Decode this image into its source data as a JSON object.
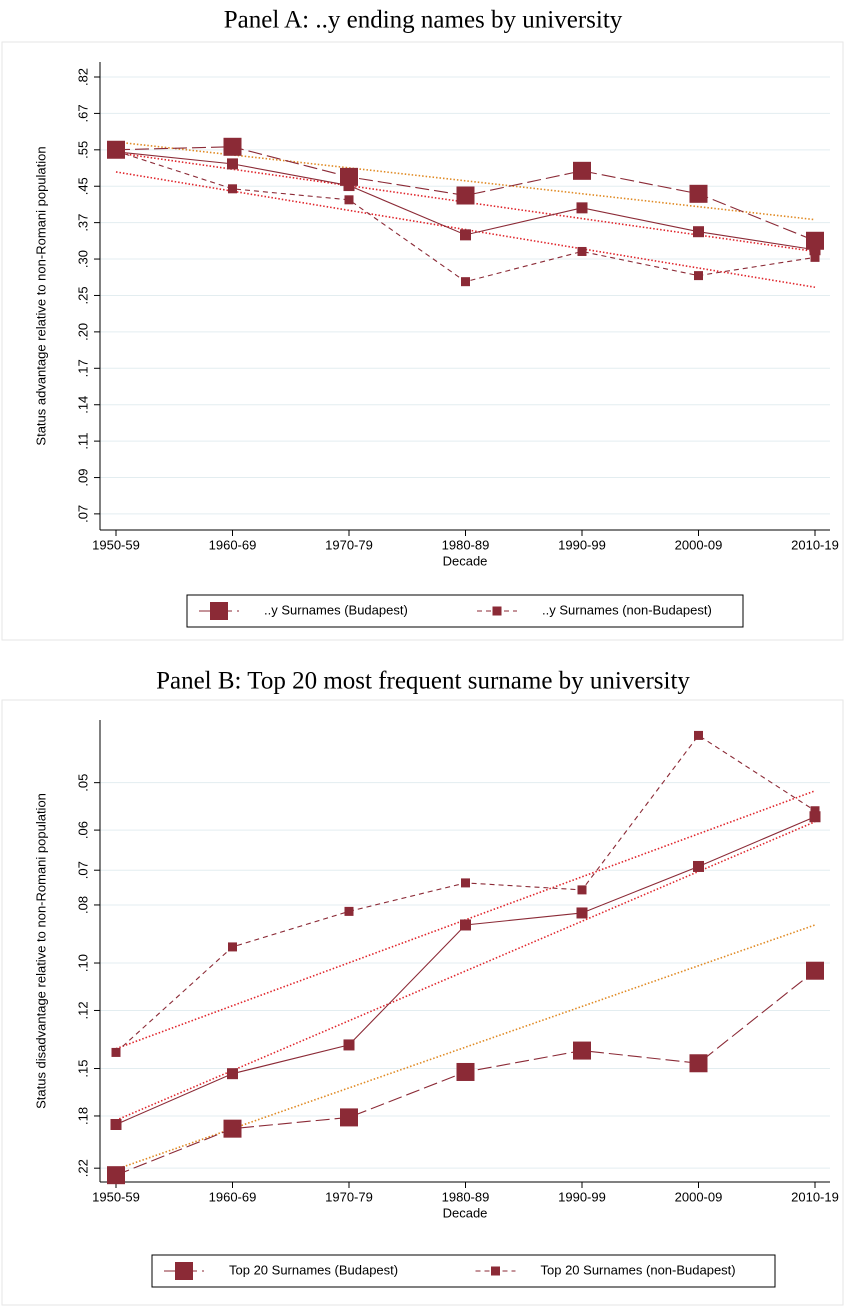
{
  "chart_data": [
    {
      "type": "line",
      "title": "Panel A: ..y ending names by university",
      "x_label": "Decade",
      "y_label": "Status advantage relative to non-Romani population",
      "categories": [
        "1950-59",
        "1960-69",
        "1970-79",
        "1980-89",
        "1990-99",
        "2000-09",
        "2010-19"
      ],
      "log_scale": true,
      "reversed": false,
      "grid": true,
      "ylim": [
        0.068,
        0.889
      ],
      "yticks": [
        {
          "value": 0.0743,
          "label": ".07"
        },
        {
          "value": 0.0907,
          "label": ".09"
        },
        {
          "value": 0.1108,
          "label": ".11"
        },
        {
          "value": 0.1353,
          "label": ".14"
        },
        {
          "value": 0.1653,
          "label": ".17"
        },
        {
          "value": 0.2019,
          "label": ".20"
        },
        {
          "value": 0.2466,
          "label": ".25"
        },
        {
          "value": 0.3012,
          "label": ".30"
        },
        {
          "value": 0.3679,
          "label": ".37"
        },
        {
          "value": 0.4493,
          "label": ".45"
        },
        {
          "value": 0.5488,
          "label": ".55"
        },
        {
          "value": 0.6703,
          "label": ".67"
        },
        {
          "value": 0.8187,
          "label": ".82"
        }
      ],
      "series": [
        {
          "name": "..y Surnames (Budapest)",
          "color": "#8b2a36",
          "line_style": "long-dash",
          "marker": "large",
          "values": [
            0.549,
            0.558,
            0.473,
            0.427,
            0.489,
            0.431,
            0.333
          ]
        },
        {
          "name": "..y Surnames (non-Budapest)",
          "color": "#8b2a36",
          "line_style": "short-dash",
          "marker": "small",
          "values": [
            0.545,
            0.443,
            0.417,
            0.266,
            0.314,
            0.275,
            0.304
          ]
        },
        {
          "color": "#8b2a36",
          "line_style": "solid",
          "marker": "medium",
          "values": [
            0.543,
            0.508,
            0.451,
            0.344,
            0.399,
            0.35,
            0.317
          ]
        }
      ],
      "fit_lines": [
        {
          "color": "#e08a24",
          "values": [
            0.573,
            0.374
          ]
        },
        {
          "color": "#e0262c",
          "values": [
            0.54,
            0.314
          ]
        },
        {
          "color": "#e0262c",
          "values": [
            0.486,
            0.258
          ]
        }
      ]
    },
    {
      "type": "line",
      "title": "Panel B: Top 20 most frequent surname by university",
      "x_label": "Decade",
      "y_label": "Status disadvantage relative to non-Romani population",
      "categories": [
        "1950-59",
        "1960-69",
        "1970-79",
        "1980-89",
        "1990-99",
        "2000-09",
        "2010-19"
      ],
      "log_scale": true,
      "reversed": true,
      "grid": true,
      "ylim": [
        0.0393,
        0.232
      ],
      "yticks": [
        {
          "value": 0.05,
          "label": ".05"
        },
        {
          "value": 0.06,
          "label": ".06"
        },
        {
          "value": 0.07,
          "label": ".07"
        },
        {
          "value": 0.08,
          "label": ".08"
        },
        {
          "value": 0.1,
          "label": ".10"
        },
        {
          "value": 0.12,
          "label": ".12"
        },
        {
          "value": 0.15,
          "label": ".15"
        },
        {
          "value": 0.18,
          "label": ".18"
        },
        {
          "value": 0.22,
          "label": ".22"
        }
      ],
      "series": [
        {
          "name": "Top 20 Surnames (Budapest)",
          "color": "#8b2a36",
          "line_style": "long-dash",
          "marker": "large",
          "values": [
            0.226,
            0.189,
            0.181,
            0.152,
            0.14,
            0.147,
            0.103
          ]
        },
        {
          "name": "Top 20 Surnames (non-Budapest)",
          "color": "#8b2a36",
          "line_style": "short-dash",
          "marker": "small",
          "values": [
            0.141,
            0.094,
            0.082,
            0.0735,
            0.0755,
            0.0417,
            0.0557
          ]
        },
        {
          "color": "#8b2a36",
          "line_style": "solid",
          "marker": "medium",
          "values": [
            0.186,
            0.153,
            0.137,
            0.0864,
            0.0825,
            0.069,
            0.057
          ]
        }
      ],
      "fit_lines": [
        {
          "color": "#e08a24",
          "values": [
            0.221,
            0.0864
          ]
        },
        {
          "color": "#e0262c",
          "values": [
            0.139,
            0.0516
          ]
        },
        {
          "color": "#e0262c",
          "values": [
            0.183,
            0.0581
          ]
        }
      ]
    }
  ]
}
